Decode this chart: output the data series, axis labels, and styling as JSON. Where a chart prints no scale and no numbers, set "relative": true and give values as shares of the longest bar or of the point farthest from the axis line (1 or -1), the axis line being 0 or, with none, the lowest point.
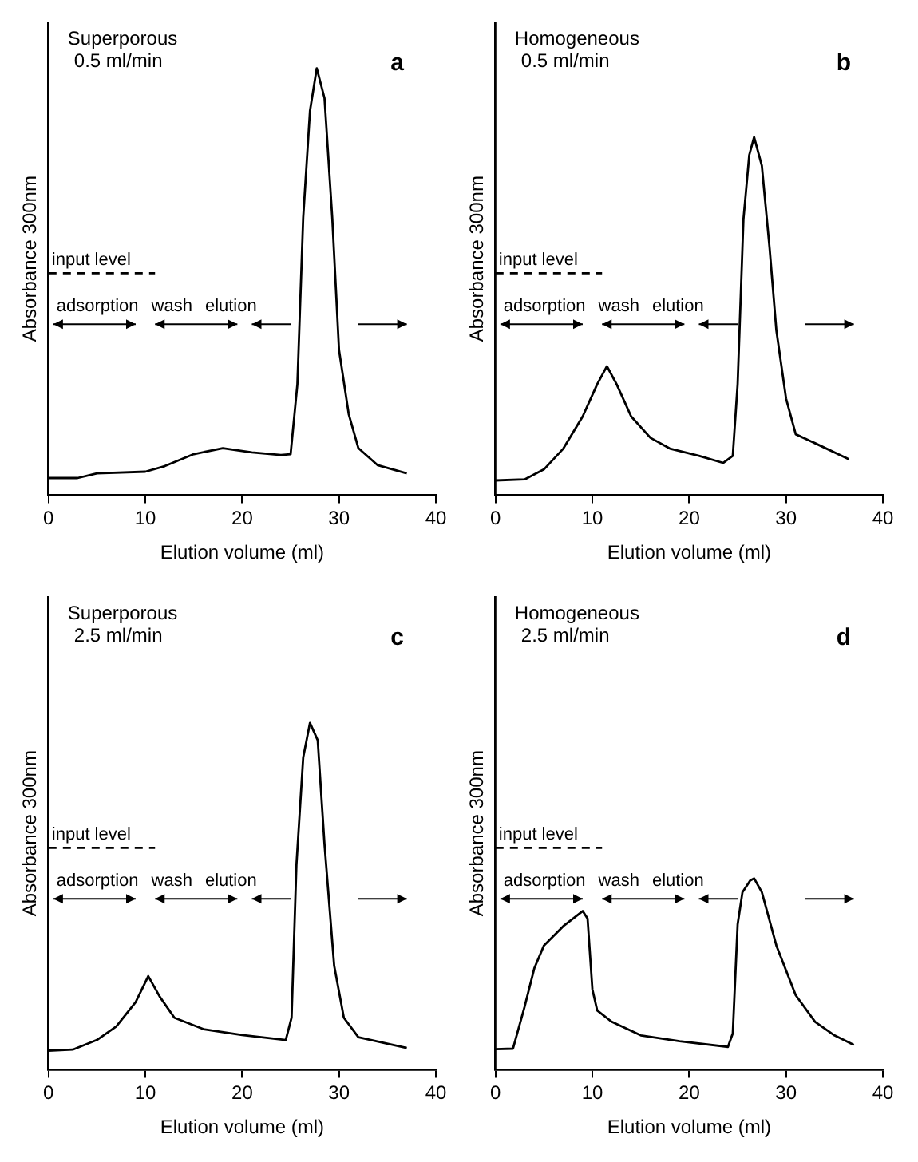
{
  "chart_data": [
    {
      "type": "line",
      "title": "Superporous",
      "subtitle": "0.5 ml/min",
      "xlabel": "Elution volume (ml)",
      "ylabel": "Absorbance 300nm",
      "relative": true,
      "xlim": [
        0,
        40
      ],
      "xticks": [
        0,
        10,
        20,
        30,
        40
      ],
      "legend": false,
      "marker": "none",
      "annotations": [
        "a",
        "adsorption",
        "wash",
        "elution"
      ],
      "series": [
        {
          "color": "#000000",
          "line_style": "solid",
          "x": [
            0,
            3,
            5,
            10,
            12,
            15,
            18,
            21,
            24,
            25,
            25.7,
            26.3,
            27,
            27.7,
            28.5,
            29.3,
            30,
            31,
            32,
            34,
            37
          ],
          "values": [
            0.04,
            0.04,
            0.051,
            0.055,
            0.068,
            0.096,
            0.11,
            0.1,
            0.094,
            0.096,
            0.26,
            0.65,
            0.9,
            1,
            0.93,
            0.65,
            0.34,
            0.19,
            0.11,
            0.07,
            0.051
          ]
        },
        {
          "name": "input level",
          "color": "#000000",
          "line_style": "dashed",
          "x": [
            0,
            11
          ],
          "values": [
            0.52,
            0.52
          ]
        }
      ]
    },
    {
      "type": "line",
      "title": "Homogeneous",
      "subtitle": "0.5 ml/min",
      "xlabel": "Elution volume (ml)",
      "ylabel": "Absorbance 300nm",
      "relative": true,
      "xlim": [
        0,
        40
      ],
      "xticks": [
        0,
        10,
        20,
        30,
        40
      ],
      "legend": false,
      "marker": "none",
      "annotations": [
        "b",
        "adsorption",
        "wash",
        "elution"
      ],
      "series": [
        {
          "color": "#000000",
          "line_style": "solid",
          "x": [
            0,
            3,
            5,
            7,
            9,
            10.5,
            11.5,
            12.5,
            14,
            16,
            18,
            21,
            23.5,
            24.5,
            25,
            25.6,
            26.2,
            26.7,
            27.5,
            28.3,
            29,
            30,
            31,
            33,
            36.5
          ],
          "values": [
            0.041,
            0.044,
            0.072,
            0.13,
            0.22,
            0.31,
            0.36,
            0.31,
            0.22,
            0.16,
            0.13,
            0.11,
            0.09,
            0.11,
            0.31,
            0.77,
            0.95,
            1,
            0.92,
            0.69,
            0.46,
            0.27,
            0.17,
            0.145,
            0.1
          ]
        },
        {
          "name": "input level",
          "color": "#000000",
          "line_style": "dashed",
          "x": [
            0,
            11
          ],
          "values": [
            0.62,
            0.62
          ]
        }
      ]
    },
    {
      "type": "line",
      "title": "Superporous",
      "subtitle": "2.5 ml/min",
      "xlabel": "Elution volume (ml)",
      "ylabel": "Absorbance 300nm",
      "relative": true,
      "xlim": [
        0,
        40
      ],
      "xticks": [
        0,
        10,
        20,
        30,
        40
      ],
      "legend": false,
      "marker": "none",
      "annotations": [
        "c",
        "adsorption",
        "wash",
        "elution"
      ],
      "series": [
        {
          "color": "#000000",
          "line_style": "solid",
          "x": [
            0,
            2.5,
            5,
            7,
            9,
            10.3,
            11.5,
            13,
            16,
            20,
            24.5,
            25.1,
            25.6,
            26.3,
            27,
            27.8,
            28.5,
            29.5,
            30.5,
            32,
            37
          ],
          "values": [
            0.055,
            0.058,
            0.086,
            0.125,
            0.195,
            0.27,
            0.21,
            0.15,
            0.117,
            0.1,
            0.086,
            0.15,
            0.59,
            0.9,
            1,
            0.95,
            0.65,
            0.3,
            0.15,
            0.094,
            0.063
          ]
        },
        {
          "name": "input level",
          "color": "#000000",
          "line_style": "dashed",
          "x": [
            0,
            11
          ],
          "values": [
            0.64,
            0.64
          ]
        }
      ]
    },
    {
      "type": "line",
      "title": "Homogeneous",
      "subtitle": "2.5 ml/min",
      "xlabel": "Elution volume (ml)",
      "ylabel": "Absorbance 300nm",
      "relative": true,
      "xlim": [
        0,
        40
      ],
      "xticks": [
        0,
        10,
        20,
        30,
        40
      ],
      "legend": false,
      "marker": "none",
      "annotations": [
        "d",
        "adsorption",
        "wash",
        "elution"
      ],
      "series": [
        {
          "color": "#000000",
          "line_style": "solid",
          "x": [
            0,
            1.8,
            3,
            4,
            5,
            7,
            9,
            9.5,
            10,
            10.5,
            12,
            15,
            19,
            24,
            24.5,
            25,
            25.5,
            26.3,
            26.7,
            27.5,
            29,
            31,
            33,
            35,
            37
          ],
          "values": [
            0.093,
            0.095,
            0.284,
            0.457,
            0.56,
            0.647,
            0.715,
            0.681,
            0.362,
            0.267,
            0.216,
            0.155,
            0.129,
            0.103,
            0.164,
            0.655,
            0.8,
            0.853,
            0.862,
            0.8,
            0.56,
            0.336,
            0.216,
            0.155,
            0.112
          ]
        },
        {
          "name": "input level",
          "color": "#000000",
          "line_style": "dashed",
          "x": [
            0,
            11
          ],
          "values": [
            1,
            1
          ]
        }
      ]
    }
  ]
}
